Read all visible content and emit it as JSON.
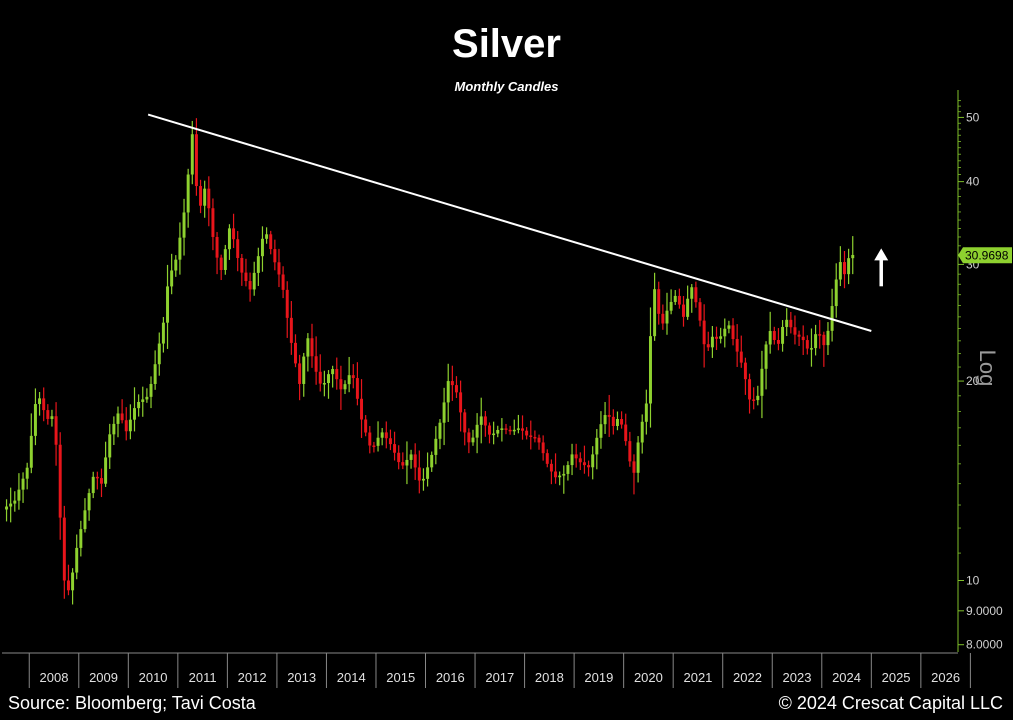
{
  "header": {
    "title": "Silver",
    "subtitle": "Monthly Candles"
  },
  "footer": {
    "source": "Source: Bloomberg; Tavi Costa",
    "copyright": "© 2024 Crescat Capital LLC"
  },
  "colors": {
    "background": "#000000",
    "up_candle": "#8ed12f",
    "down_candle": "#e8151b",
    "trendline": "#ffffff",
    "axis": "#7fbf2a",
    "last_price_label": "#8ed12f"
  },
  "chart_data": {
    "type": "candlestick",
    "scale_label": "Log",
    "y_scale": "log",
    "ylim": [
      7.8,
      55
    ],
    "xlim": [
      2007.45,
      2026.75
    ],
    "y_ticks": [
      {
        "value": 50,
        "label": "50"
      },
      {
        "value": 40,
        "label": "40"
      },
      {
        "value": 30,
        "label": "30"
      },
      {
        "value": 20,
        "label": "20"
      },
      {
        "value": 10,
        "label": "10"
      },
      {
        "value": 9,
        "label": "9.0000"
      },
      {
        "value": 8,
        "label": "8.0000"
      }
    ],
    "x_ticks": [
      "2008",
      "2009",
      "2010",
      "2011",
      "2012",
      "2013",
      "2014",
      "2015",
      "2016",
      "2017",
      "2018",
      "2019",
      "2020",
      "2021",
      "2022",
      "2023",
      "2024",
      "2025",
      "2026"
    ],
    "last_price": {
      "value": 30.9698,
      "label": "30.9698"
    },
    "trendline": {
      "start": [
        2010.4,
        50.5
      ],
      "end": [
        2025.0,
        23.8
      ]
    },
    "arrow": {
      "x": 2025.2,
      "from": 27.8,
      "to": 31.5,
      "direction": "up"
    },
    "series": [
      {
        "name": "Silver",
        "price_path": [
          [
            2007.5,
            12.8
          ],
          [
            2007.75,
            13.2
          ],
          [
            2008.0,
            14.8
          ],
          [
            2008.2,
            19.3
          ],
          [
            2008.4,
            17.5
          ],
          [
            2008.55,
            17.8
          ],
          [
            2008.65,
            13.0
          ],
          [
            2008.75,
            10.0
          ],
          [
            2008.85,
            9.6
          ],
          [
            2009.0,
            11.2
          ],
          [
            2009.2,
            13.1
          ],
          [
            2009.35,
            14.5
          ],
          [
            2009.5,
            14.0
          ],
          [
            2009.65,
            16.5
          ],
          [
            2009.85,
            18.0
          ],
          [
            2010.0,
            16.8
          ],
          [
            2010.2,
            18.5
          ],
          [
            2010.45,
            19.0
          ],
          [
            2010.6,
            21.5
          ],
          [
            2010.75,
            24.5
          ],
          [
            2010.85,
            28.5
          ],
          [
            2011.0,
            30.5
          ],
          [
            2011.15,
            35.0
          ],
          [
            2011.25,
            41.0
          ],
          [
            2011.35,
            48.5
          ],
          [
            2011.45,
            35.5
          ],
          [
            2011.6,
            39.5
          ],
          [
            2011.75,
            33.0
          ],
          [
            2011.9,
            29.0
          ],
          [
            2012.1,
            34.5
          ],
          [
            2012.3,
            29.5
          ],
          [
            2012.5,
            27.5
          ],
          [
            2012.65,
            30.5
          ],
          [
            2012.8,
            34.0
          ],
          [
            2012.95,
            31.0
          ],
          [
            2013.15,
            28.0
          ],
          [
            2013.3,
            23.5
          ],
          [
            2013.5,
            19.8
          ],
          [
            2013.65,
            23.5
          ],
          [
            2013.8,
            21.0
          ],
          [
            2013.95,
            19.5
          ],
          [
            2014.15,
            21.0
          ],
          [
            2014.35,
            19.3
          ],
          [
            2014.55,
            20.8
          ],
          [
            2014.75,
            17.5
          ],
          [
            2014.95,
            15.7
          ],
          [
            2015.15,
            16.8
          ],
          [
            2015.35,
            16.0
          ],
          [
            2015.55,
            14.8
          ],
          [
            2015.75,
            15.5
          ],
          [
            2015.95,
            13.9
          ],
          [
            2016.15,
            15.3
          ],
          [
            2016.35,
            17.5
          ],
          [
            2016.5,
            20.0
          ],
          [
            2016.65,
            19.5
          ],
          [
            2016.85,
            16.5
          ],
          [
            2016.95,
            16.0
          ],
          [
            2017.15,
            17.8
          ],
          [
            2017.35,
            16.5
          ],
          [
            2017.55,
            17.0
          ],
          [
            2017.75,
            16.8
          ],
          [
            2017.95,
            17.0
          ],
          [
            2018.1,
            16.5
          ],
          [
            2018.3,
            16.4
          ],
          [
            2018.5,
            15.0
          ],
          [
            2018.65,
            14.3
          ],
          [
            2018.85,
            14.5
          ],
          [
            2019.0,
            15.5
          ],
          [
            2019.2,
            15.0
          ],
          [
            2019.35,
            14.8
          ],
          [
            2019.55,
            17.0
          ],
          [
            2019.7,
            18.0
          ],
          [
            2019.85,
            17.0
          ],
          [
            2019.95,
            17.8
          ],
          [
            2020.15,
            15.5
          ],
          [
            2020.22,
            14.0
          ],
          [
            2020.35,
            16.5
          ],
          [
            2020.5,
            18.5
          ],
          [
            2020.6,
            24.5
          ],
          [
            2020.65,
            28.0
          ],
          [
            2020.8,
            24.0
          ],
          [
            2020.95,
            26.0
          ],
          [
            2021.1,
            27.0
          ],
          [
            2021.25,
            25.0
          ],
          [
            2021.4,
            28.0
          ],
          [
            2021.55,
            25.5
          ],
          [
            2021.7,
            22.0
          ],
          [
            2021.85,
            23.5
          ],
          [
            2021.95,
            23.0
          ],
          [
            2022.15,
            24.5
          ],
          [
            2022.3,
            22.5
          ],
          [
            2022.45,
            21.0
          ],
          [
            2022.6,
            18.5
          ],
          [
            2022.75,
            19.0
          ],
          [
            2022.9,
            22.5
          ],
          [
            2023.0,
            23.8
          ],
          [
            2023.15,
            22.5
          ],
          [
            2023.3,
            25.0
          ],
          [
            2023.5,
            23.5
          ],
          [
            2023.65,
            23.2
          ],
          [
            2023.8,
            22.0
          ],
          [
            2023.95,
            24.0
          ],
          [
            2024.1,
            22.5
          ],
          [
            2024.2,
            24.5
          ],
          [
            2024.3,
            27.5
          ],
          [
            2024.4,
            30.5
          ],
          [
            2024.5,
            29.0
          ],
          [
            2024.6,
            31.0
          ]
        ]
      }
    ]
  }
}
